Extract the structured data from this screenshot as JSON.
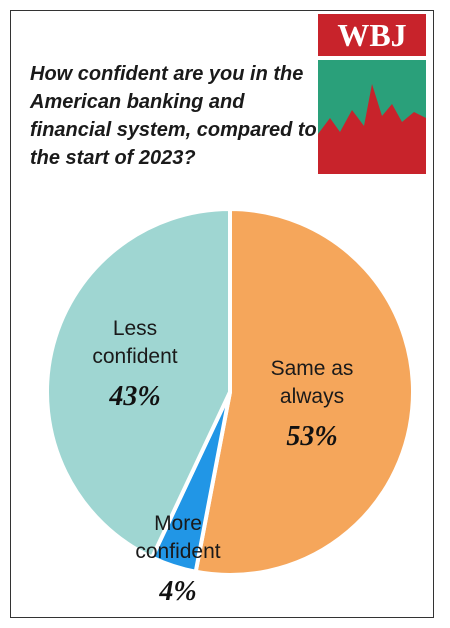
{
  "brand": {
    "logo_text": "WBJ",
    "colors": {
      "logo_red": "#c8232b",
      "logo_green": "#2aa07a"
    }
  },
  "question": "How confident are you in the American banking and financial system, compared to the start of 2023?",
  "chart_data": {
    "type": "pie",
    "title": "How confident are you in the American banking and financial system, compared to the start of 2023?",
    "slices": [
      {
        "label_lines": [
          "Same as",
          "always"
        ],
        "value": 53,
        "value_label": "53%",
        "color": "#f5a65b"
      },
      {
        "label_lines": [
          "More",
          "confident"
        ],
        "value": 4,
        "value_label": "4%",
        "color": "#2196e6"
      },
      {
        "label_lines": [
          "Less",
          "confident"
        ],
        "value": 43,
        "value_label": "43%",
        "color": "#9fd6d2"
      }
    ]
  }
}
